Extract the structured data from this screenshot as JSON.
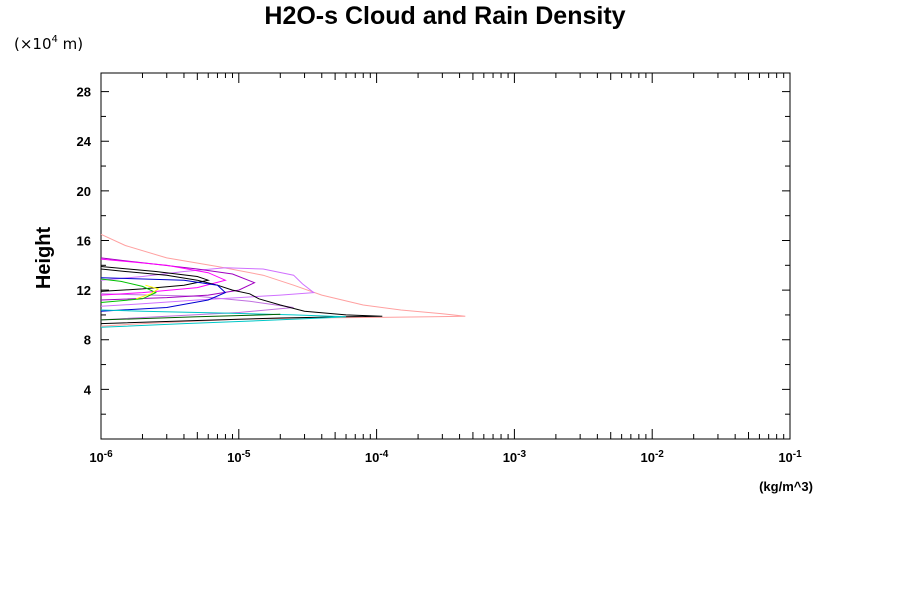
{
  "chart_data": {
    "type": "line",
    "title": "H2O-s Cloud and Rain Density",
    "ylabel": "Height",
    "y_unit": "(×10",
    "y_unit_exp": "4",
    "y_unit_suffix": " m)",
    "xlabel": "(kg/m^3)",
    "x_scale": "log",
    "xlim": [
      1e-06,
      0.1
    ],
    "ylim": [
      0,
      29.5
    ],
    "x_ticks": [
      {
        "base": "10",
        "exp": "-6",
        "value": 1e-06
      },
      {
        "base": "10",
        "exp": "-5",
        "value": 1e-05
      },
      {
        "base": "10",
        "exp": "-4",
        "value": 0.0001
      },
      {
        "base": "10",
        "exp": "-3",
        "value": 0.001
      },
      {
        "base": "10",
        "exp": "-2",
        "value": 0.01
      },
      {
        "base": "10",
        "exp": "-1",
        "value": 0.1
      }
    ],
    "y_ticks": [
      "4",
      "8",
      "12",
      "16",
      "20",
      "24",
      "28"
    ],
    "grid": false,
    "series": [
      {
        "color": "#ffa0a0",
        "points": [
          [
            1e-06,
            9.1
          ],
          [
            2e-06,
            9.3
          ],
          [
            5e-06,
            9.5
          ],
          [
            1e-05,
            9.65
          ],
          [
            3e-05,
            9.75
          ],
          [
            0.0001,
            9.8
          ],
          [
            0.00025,
            9.85
          ],
          [
            0.00044,
            9.9
          ],
          [
            0.0003,
            10.1
          ],
          [
            0.00015,
            10.4
          ],
          [
            8e-05,
            10.8
          ],
          [
            4e-05,
            11.6
          ],
          [
            2.5e-05,
            12.4
          ],
          [
            1.5e-05,
            13.2
          ],
          [
            7e-06,
            13.9
          ],
          [
            3e-06,
            14.6
          ],
          [
            1.5e-06,
            15.6
          ],
          [
            1e-06,
            16.5
          ]
        ]
      },
      {
        "color": "#c070e0",
        "points": [
          [
            1e-06,
            9.6
          ],
          [
            3e-06,
            9.9
          ],
          [
            1e-05,
            10.2
          ],
          [
            2.5e-05,
            10.6
          ],
          [
            1.2e-05,
            11.1
          ],
          [
            5e-06,
            11.5
          ],
          [
            1e-06,
            11.7
          ]
        ]
      },
      {
        "color": "#d070ff",
        "points": [
          [
            1e-06,
            12.8
          ],
          [
            2e-06,
            13.1
          ],
          [
            4e-06,
            13.5
          ],
          [
            8e-06,
            13.8
          ],
          [
            1.5e-05,
            13.7
          ],
          [
            2.5e-05,
            13.2
          ],
          [
            2.9e-05,
            12.5
          ],
          [
            3.5e-05,
            11.8
          ],
          [
            2e-05,
            11.6
          ],
          [
            1e-05,
            11.4
          ],
          [
            5e-06,
            11.2
          ],
          [
            2e-06,
            10.9
          ],
          [
            1e-06,
            10.7
          ]
        ]
      },
      {
        "color": "#a000c0",
        "points": [
          [
            1e-06,
            14.6
          ],
          [
            2e-06,
            14.2
          ],
          [
            5e-06,
            13.7
          ],
          [
            9e-06,
            13.3
          ],
          [
            1.3e-05,
            12.6
          ],
          [
            1e-05,
            12.0
          ],
          [
            6e-06,
            11.6
          ],
          [
            3e-06,
            11.4
          ],
          [
            1e-06,
            11.2
          ]
        ]
      },
      {
        "color": "#ff00ff",
        "points": [
          [
            1e-06,
            14.5
          ],
          [
            3e-06,
            14.0
          ],
          [
            6e-06,
            13.4
          ],
          [
            8e-06,
            12.8
          ],
          [
            5e-06,
            12.2
          ],
          [
            2e-06,
            11.8
          ],
          [
            1e-06,
            11.6
          ]
        ]
      },
      {
        "color": "#000000",
        "points": [
          [
            1e-06,
            9.3
          ],
          [
            5e-06,
            9.55
          ],
          [
            2e-05,
            9.75
          ],
          [
            6e-05,
            9.85
          ],
          [
            0.00011,
            9.9
          ],
          [
            6e-05,
            10.0
          ],
          [
            3e-05,
            10.3
          ],
          [
            2e-05,
            10.8
          ],
          [
            1.4e-05,
            11.3
          ],
          [
            1.2e-05,
            11.7
          ],
          [
            9e-06,
            12.0
          ],
          [
            7e-06,
            12.4
          ],
          [
            5e-06,
            12.8
          ],
          [
            3e-06,
            13.2
          ],
          [
            1.5e-06,
            13.5
          ],
          [
            1e-06,
            13.7
          ]
        ]
      },
      {
        "color": "#000000",
        "points": [
          [
            1e-06,
            13.9
          ],
          [
            2.5e-06,
            13.5
          ],
          [
            5e-06,
            13.1
          ],
          [
            6e-06,
            12.8
          ],
          [
            4e-06,
            12.4
          ],
          [
            2e-06,
            12.1
          ],
          [
            1e-06,
            11.9
          ]
        ]
      },
      {
        "color": "#0000d0",
        "points": [
          [
            1e-06,
            10.3
          ],
          [
            3e-06,
            10.6
          ],
          [
            6e-06,
            11.2
          ],
          [
            8e-06,
            11.8
          ],
          [
            7e-06,
            12.4
          ],
          [
            4e-06,
            12.8
          ],
          [
            1e-06,
            13.0
          ]
        ]
      },
      {
        "color": "#00c8c8",
        "points": [
          [
            1e-06,
            9.0
          ],
          [
            4e-06,
            9.3
          ],
          [
            1.5e-05,
            9.55
          ],
          [
            4e-05,
            9.75
          ],
          [
            6e-05,
            9.85
          ],
          [
            2.5e-05,
            10.0
          ],
          [
            8e-06,
            10.15
          ],
          [
            2e-06,
            10.3
          ],
          [
            1e-06,
            10.4
          ]
        ]
      },
      {
        "color": "#00c000",
        "points": [
          [
            1e-06,
            11.0
          ],
          [
            2e-06,
            11.3
          ],
          [
            2.5e-06,
            11.8
          ],
          [
            2e-06,
            12.3
          ],
          [
            1.4e-06,
            12.7
          ],
          [
            1e-06,
            12.9
          ]
        ]
      },
      {
        "color": "#ffff00",
        "points": [
          [
            1.8e-06,
            11.3
          ],
          [
            2.3e-06,
            11.7
          ],
          [
            2.6e-06,
            12.1
          ],
          [
            2.1e-06,
            12.4
          ]
        ]
      },
      {
        "color": "#006000",
        "points": [
          [
            1e-06,
            9.6
          ],
          [
            5e-06,
            9.85
          ],
          [
            1.5e-05,
            10.0
          ],
          [
            2e-05,
            10.05
          ]
        ]
      }
    ]
  }
}
